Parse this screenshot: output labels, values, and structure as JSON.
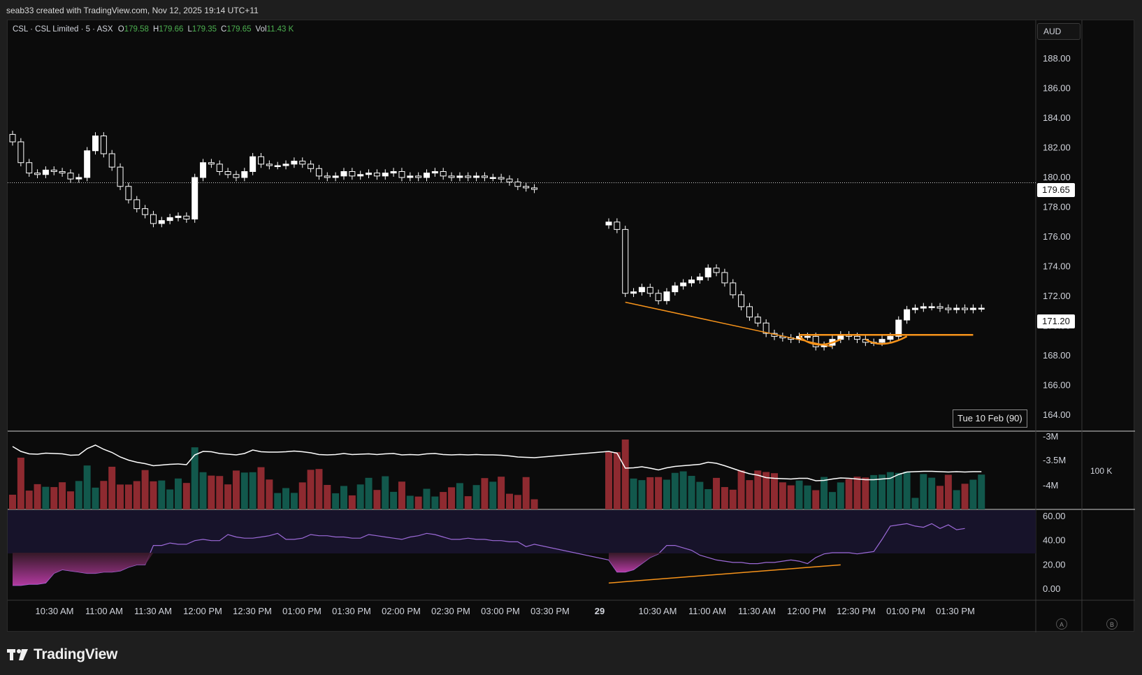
{
  "header": {
    "attribution": "seab33 created with TradingView.com, Nov 12, 2025 19:14 UTC+11"
  },
  "legend": {
    "symbol": "CSL · CSL Limited · 5 · ASX",
    "open_label": "O",
    "open": "179.58",
    "high_label": "H",
    "high": "179.66",
    "low_label": "L",
    "low": "179.35",
    "close_label": "C",
    "close": "179.65",
    "vol_label": "Vol",
    "vol": "11.43 K"
  },
  "currency": "AUD",
  "price_tags": {
    "prev_close": "179.65",
    "last": "171.20"
  },
  "date_tooltip": "Tue 10 Feb (90)",
  "volume_scale_label": "100 K",
  "buttons": {
    "a": "A",
    "b": "B"
  },
  "brand": {
    "name": "TradingView"
  },
  "colors": {
    "background": "#0b0b0b",
    "up_candle": "#ffffff",
    "volume_up": "#12584c",
    "volume_down": "#8e2a30",
    "rsi_line": "#9c6ad8",
    "trendline": "#f7931a"
  },
  "chart_data": [
    {
      "type": "candlestick",
      "title": "",
      "price_axis_ticks": [
        "188.00",
        "186.00",
        "184.00",
        "182.00",
        "180.00",
        "178.00",
        "176.00",
        "174.00",
        "172.00",
        "170.00",
        "168.00",
        "166.00",
        "164.00"
      ],
      "time_axis_ticks": [
        "10:30 AM",
        "11:00 AM",
        "11:30 AM",
        "12:00 PM",
        "12:30 PM",
        "01:00 PM",
        "01:30 PM",
        "02:00 PM",
        "02:30 PM",
        "03:00 PM",
        "03:30 PM",
        "29",
        "10:30 AM",
        "11:00 AM",
        "11:30 AM",
        "12:00 PM",
        "12:30 PM",
        "01:00 PM",
        "01:30 PM"
      ],
      "ylim": [
        164,
        189
      ],
      "closes": [
        182.4,
        181.0,
        180.3,
        180.2,
        180.5,
        180.4,
        180.3,
        179.9,
        180.0,
        181.8,
        182.8,
        181.6,
        180.7,
        179.4,
        178.5,
        177.9,
        177.5,
        176.9,
        177.1,
        177.3,
        177.4,
        177.2,
        180.0,
        181.0,
        180.9,
        180.4,
        180.2,
        180.0,
        180.4,
        181.4,
        180.9,
        180.8,
        180.8,
        180.9,
        181.1,
        180.9,
        180.6,
        180.1,
        180.0,
        180.1,
        180.4,
        180.1,
        180.2,
        180.3,
        180.1,
        180.3,
        180.4,
        180.0,
        180.1,
        180.0,
        180.3,
        180.4,
        180.1,
        180.0,
        180.1,
        180.0,
        180.1,
        180.0,
        180.0,
        179.9,
        179.7,
        179.4,
        179.3,
        179.2,
        177.0,
        176.5,
        172.2,
        172.3,
        172.6,
        172.2,
        171.7,
        172.3,
        172.7,
        172.9,
        173.1,
        173.3,
        173.9,
        173.6,
        172.9,
        172.1,
        171.3,
        170.6,
        170.2,
        169.5,
        169.3,
        169.2,
        169.1,
        169.3,
        169.3,
        168.6,
        168.7,
        169.1,
        169.4,
        169.3,
        169.1,
        168.9,
        168.9,
        169.1,
        169.3,
        170.4,
        171.1,
        171.2,
        171.3,
        171.3,
        171.2,
        171.1,
        171.2,
        171.1,
        171.2,
        171.2
      ]
    },
    {
      "type": "bar",
      "title": "",
      "volume_axis_ticks": [
        "-3M",
        "-3.5M",
        "-4M"
      ]
    },
    {
      "type": "line",
      "title": "",
      "rsi_axis_ticks": [
        "60.00",
        "40.00",
        "20.00",
        "0.00"
      ],
      "rsi": [
        3,
        3,
        4,
        4,
        5,
        13,
        16,
        15,
        14,
        13,
        13,
        14,
        14,
        15,
        18,
        20,
        20,
        36,
        36,
        38,
        37,
        37,
        40,
        41,
        40,
        40,
        45,
        43,
        42,
        42,
        43,
        44,
        46,
        41,
        41,
        42,
        45,
        44,
        44,
        43,
        43,
        42,
        42,
        45,
        44,
        43,
        42,
        41,
        43,
        44,
        46,
        45,
        43,
        41,
        41,
        42,
        41,
        41,
        40,
        40,
        39,
        39,
        35,
        37,
        24,
        14,
        14,
        16,
        21,
        26,
        29,
        36,
        36,
        34,
        32,
        28,
        26,
        24,
        23,
        22,
        22,
        21,
        21,
        22,
        22,
        23,
        24,
        23,
        21,
        26,
        29,
        30,
        30,
        30,
        29,
        30,
        31,
        41,
        52,
        53,
        54,
        52,
        51,
        54,
        50,
        53,
        49,
        50
      ]
    }
  ]
}
